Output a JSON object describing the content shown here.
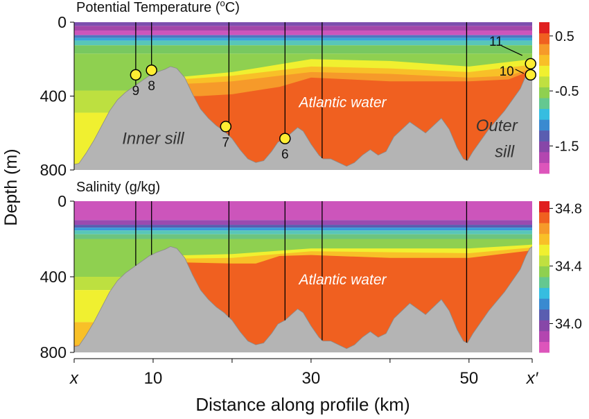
{
  "chart_data": {
    "type": "heatmap",
    "xlabel": "Distance along profile (km)",
    "ylabel": "Depth (m)",
    "xlim": [
      0,
      58
    ],
    "x_ticks": [
      {
        "value": 0,
        "label": "x",
        "italic": true
      },
      {
        "value": 10,
        "label": "10"
      },
      {
        "value": 20,
        "label": ""
      },
      {
        "value": 30,
        "label": "30"
      },
      {
        "value": 40,
        "label": ""
      },
      {
        "value": 50,
        "label": "50"
      },
      {
        "value": 58,
        "label": "x′",
        "italic": true
      }
    ],
    "station_cast_km": [
      7.8,
      9.8,
      19.6,
      26.7,
      31.4,
      49.7
    ],
    "bathymetry": [
      [
        0,
        770
      ],
      [
        0.6,
        765
      ],
      [
        1.5,
        710
      ],
      [
        2.5,
        640
      ],
      [
        3.5,
        560
      ],
      [
        4.5,
        480
      ],
      [
        5.5,
        420
      ],
      [
        6.5,
        380
      ],
      [
        7.5,
        350
      ],
      [
        8.5,
        320
      ],
      [
        9.5,
        290
      ],
      [
        10.5,
        270
      ],
      [
        11.5,
        255
      ],
      [
        12.2,
        240
      ],
      [
        13.0,
        250
      ],
      [
        14.0,
        300
      ],
      [
        15.0,
        390
      ],
      [
        16.0,
        470
      ],
      [
        17.0,
        520
      ],
      [
        18.0,
        560
      ],
      [
        19.0,
        590
      ],
      [
        20.0,
        630
      ],
      [
        21.0,
        690
      ],
      [
        22.0,
        740
      ],
      [
        23.0,
        760
      ],
      [
        24.0,
        750
      ],
      [
        25.0,
        700
      ],
      [
        25.8,
        650
      ],
      [
        26.7,
        630
      ],
      [
        27.5,
        600
      ],
      [
        28.3,
        570
      ],
      [
        29.0,
        590
      ],
      [
        30.0,
        660
      ],
      [
        31.0,
        720
      ],
      [
        31.5,
        740
      ],
      [
        32.5,
        740
      ],
      [
        33.5,
        760
      ],
      [
        34.5,
        780
      ],
      [
        35.5,
        760
      ],
      [
        36.5,
        720
      ],
      [
        37.5,
        690
      ],
      [
        38.5,
        720
      ],
      [
        39.5,
        700
      ],
      [
        40.5,
        620
      ],
      [
        41.5,
        580
      ],
      [
        42.5,
        540
      ],
      [
        43.5,
        570
      ],
      [
        44.5,
        600
      ],
      [
        45.5,
        560
      ],
      [
        46.5,
        520
      ],
      [
        47.5,
        580
      ],
      [
        48.5,
        680
      ],
      [
        49.3,
        740
      ],
      [
        49.8,
        750
      ],
      [
        50.5,
        700
      ],
      [
        51.5,
        640
      ],
      [
        52.5,
        580
      ],
      [
        53.5,
        530
      ],
      [
        54.5,
        480
      ],
      [
        55.5,
        420
      ],
      [
        56.5,
        360
      ],
      [
        57.2,
        290
      ],
      [
        57.7,
        250
      ],
      [
        58,
        240
      ]
    ],
    "panels": [
      {
        "title": "Potential Temperature (",
        "title_sup": "o",
        "title_end": "C)",
        "ylim": [
          0,
          800
        ],
        "y_ticks": [
          0,
          400,
          800
        ],
        "colorbar": {
          "colors": [
            "#dd55bb",
            "#b346b0",
            "#8747a8",
            "#5a5db0",
            "#3a8ad0",
            "#36bde0",
            "#64c890",
            "#8fd050",
            "#c0e040",
            "#f0f030",
            "#f8c028",
            "#f69a2a",
            "#f06020",
            "#e02020"
          ],
          "tick_values": [
            -1.5,
            -0.5,
            0.5
          ],
          "tick_labels": [
            "-1.5",
            "-0.5",
            "0.5"
          ],
          "range": [
            -2.0,
            0.75
          ]
        },
        "layers": [
          {
            "depth": 20,
            "color": "#7d4fae"
          },
          {
            "depth": 45,
            "color": "#a347a9"
          },
          {
            "depth": 70,
            "color": "#cc55bb"
          },
          {
            "depth": 85,
            "color": "#4e76c0"
          },
          {
            "depth": 100,
            "color": "#3aa6d8"
          },
          {
            "depth": 125,
            "color": "#58c6b8"
          },
          {
            "depth": 170,
            "color": "#78c860"
          },
          {
            "depth": 370,
            "color": "#8fd050"
          },
          {
            "depth": 490,
            "color": "#bde040"
          },
          {
            "depth": 800,
            "color": "#f0f030"
          }
        ],
        "interfaces": [
          {
            "color": "#f0f030",
            "points": [
              [
                10,
                310
              ],
              [
                20,
                270
              ],
              [
                30,
                200
              ],
              [
                40,
                210
              ],
              [
                50,
                240
              ],
              [
                58,
                200
              ]
            ]
          },
          {
            "color": "#f8c028",
            "points": [
              [
                10,
                320
              ],
              [
                20,
                290
              ],
              [
                30,
                240
              ],
              [
                40,
                250
              ],
              [
                50,
                270
              ],
              [
                58,
                230
              ]
            ]
          },
          {
            "color": "#f69a2a",
            "points": [
              [
                10,
                340
              ],
              [
                16,
                330
              ],
              [
                20,
                320
              ],
              [
                25,
                295
              ],
              [
                30,
                270
              ],
              [
                35,
                275
              ],
              [
                40,
                280
              ],
              [
                45,
                290
              ],
              [
                50,
                300
              ],
              [
                55,
                290
              ],
              [
                58,
                250
              ]
            ]
          },
          {
            "color": "#f06020",
            "points": [
              [
                10,
                400
              ],
              [
                16,
                400
              ],
              [
                20,
                390
              ],
              [
                26,
                350
              ],
              [
                30,
                300
              ],
              [
                35,
                310
              ],
              [
                40,
                320
              ],
              [
                45,
                320
              ],
              [
                50,
                320
              ],
              [
                55,
                310
              ],
              [
                58,
                260
              ]
            ]
          }
        ],
        "stations": [
          {
            "label": "9",
            "x": 7.8,
            "depth": 285,
            "label_side": "below"
          },
          {
            "label": "8",
            "x": 9.8,
            "depth": 260,
            "label_side": "below"
          },
          {
            "label": "7",
            "x": 19.2,
            "depth": 565,
            "label_side": "below"
          },
          {
            "label": "6",
            "x": 26.7,
            "depth": 630,
            "label_side": "below"
          },
          {
            "label": "11",
            "x": 57.8,
            "depth": 225,
            "label_side": "upper-left"
          },
          {
            "label": "10",
            "x": 57.8,
            "depth": 285,
            "label_side": "left"
          }
        ],
        "annotations": [
          {
            "text": "Atlantic water",
            "x": 34,
            "depth": 460,
            "color": "#ffffff",
            "size": 21
          },
          {
            "text": "Inner sill",
            "x": 10,
            "depth": 660,
            "color": "#333333",
            "size": 24
          },
          {
            "text": "Outer",
            "x": 53.5,
            "depth": 590,
            "color": "#333333",
            "size": 24
          },
          {
            "text": "sill",
            "x": 54.5,
            "depth": 730,
            "color": "#333333",
            "size": 24
          }
        ]
      },
      {
        "title": "Salinity (g/kg)",
        "title_sup": "",
        "title_end": "",
        "ylim": [
          0,
          800
        ],
        "y_ticks": [
          0,
          400,
          800
        ],
        "colorbar": {
          "colors": [
            "#dd55bb",
            "#b346b0",
            "#8747a8",
            "#5a5db0",
            "#3a8ad0",
            "#36bde0",
            "#64c890",
            "#8fd050",
            "#c0e040",
            "#f0f030",
            "#f8c028",
            "#f69a2a",
            "#f06020",
            "#e02020"
          ],
          "tick_values": [
            34.0,
            34.4,
            34.8
          ],
          "tick_labels": [
            "34.0",
            "34.4",
            "34.8"
          ],
          "range": [
            33.8,
            34.85
          ]
        },
        "layers": [
          {
            "depth": 100,
            "color": "#cc55bb"
          },
          {
            "depth": 125,
            "color": "#9a4ab0"
          },
          {
            "depth": 140,
            "color": "#5a5db0"
          },
          {
            "depth": 155,
            "color": "#3a9ad8"
          },
          {
            "depth": 175,
            "color": "#58c6b8"
          },
          {
            "depth": 200,
            "color": "#6cc480"
          },
          {
            "depth": 400,
            "color": "#8fd050"
          },
          {
            "depth": 470,
            "color": "#bde040"
          },
          {
            "depth": 640,
            "color": "#f0f030"
          },
          {
            "depth": 760,
            "color": "#f8c028"
          },
          {
            "depth": 800,
            "color": "#f69a2a"
          }
        ],
        "interfaces": [
          {
            "color": "#f0f030",
            "points": [
              [
                10,
                290
              ],
              [
                20,
                280
              ],
              [
                30,
                250
              ],
              [
                40,
                250
              ],
              [
                50,
                250
              ],
              [
                58,
                230
              ]
            ]
          },
          {
            "color": "#f8c028",
            "points": [
              [
                10,
                305
              ],
              [
                20,
                300
              ],
              [
                30,
                265
              ],
              [
                40,
                270
              ],
              [
                50,
                275
              ],
              [
                58,
                245
              ]
            ]
          },
          {
            "color": "#f06020",
            "points": [
              [
                10,
                320
              ],
              [
                20,
                330
              ],
              [
                23,
                330
              ],
              [
                26,
                290
              ],
              [
                30,
                285
              ],
              [
                40,
                300
              ],
              [
                50,
                300
              ],
              [
                58,
                260
              ]
            ]
          }
        ],
        "stations": [],
        "annotations": [
          {
            "text": "Atlantic water",
            "x": 34,
            "depth": 440,
            "color": "#ffffff",
            "size": 21
          }
        ]
      }
    ]
  }
}
